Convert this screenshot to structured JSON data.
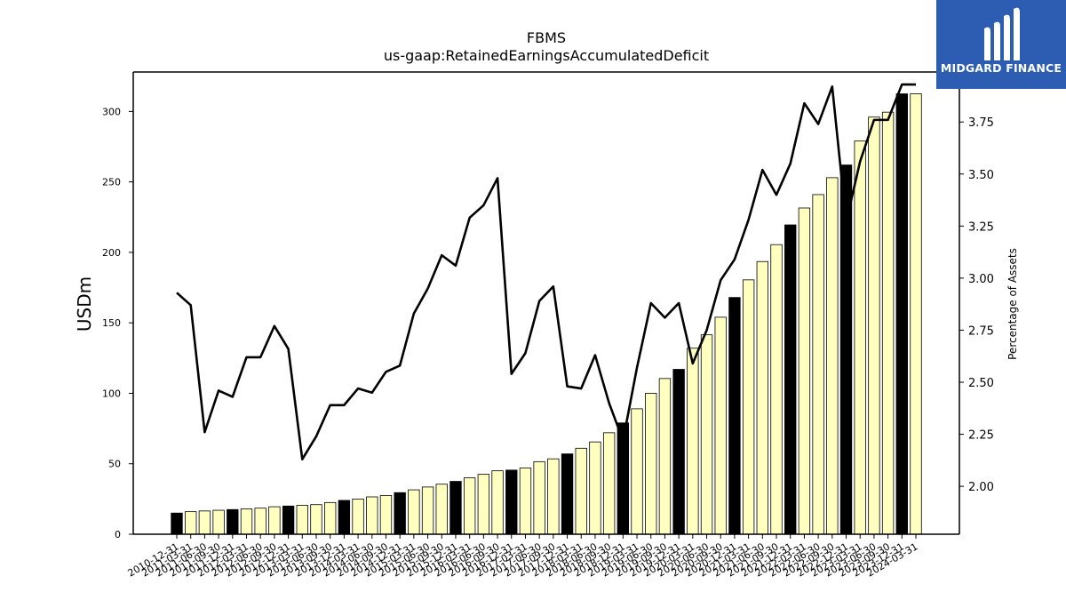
{
  "brand": {
    "name": "MIDGARD FINANCE",
    "color": "#2d5db3"
  },
  "chart_data": {
    "type": "bar",
    "title": "FBMS",
    "subtitle": "us-gaap:RetainedEarningsAccumulatedDeficit",
    "ylabel": "USDm",
    "y2label": "Percentage of Assets",
    "ylim": [
      0,
      328
    ],
    "y2lim": [
      1.77,
      3.99
    ],
    "yticks": [
      0,
      50,
      100,
      150,
      200,
      250,
      300
    ],
    "y2ticks": [
      "2.00",
      "2.25",
      "2.50",
      "2.75",
      "3.00",
      "3.25",
      "3.50",
      "3.75"
    ],
    "categories": [
      "2010-12-31",
      "2011-03-31",
      "2011-06-30",
      "2011-09-30",
      "2011-12-31",
      "2012-03-31",
      "2012-06-30",
      "2012-09-30",
      "2012-12-31",
      "2013-03-31",
      "2013-06-30",
      "2013-09-30",
      "2013-12-31",
      "2014-03-31",
      "2014-06-30",
      "2014-09-30",
      "2014-12-31",
      "2015-03-31",
      "2015-06-30",
      "2015-09-30",
      "2015-12-31",
      "2016-03-31",
      "2016-06-30",
      "2016-09-30",
      "2016-12-31",
      "2017-03-31",
      "2017-06-30",
      "2017-09-30",
      "2017-12-31",
      "2018-03-31",
      "2018-06-30",
      "2018-09-30",
      "2018-12-31",
      "2019-03-31",
      "2019-06-30",
      "2019-09-30",
      "2019-12-31",
      "2020-03-31",
      "2020-06-30",
      "2020-09-30",
      "2020-12-31",
      "2021-03-31",
      "2021-06-30",
      "2021-09-30",
      "2021-12-31",
      "2022-03-31",
      "2022-06-30",
      "2022-09-30",
      "2022-12-31",
      "2023-03-31",
      "2023-06-30",
      "2023-09-30",
      "2023-12-31",
      "2024-03-31"
    ],
    "series": [
      {
        "name": "",
        "kind": "bar",
        "values": [
          15,
          16,
          16.5,
          17,
          17.5,
          18,
          18.5,
          19.5,
          20,
          20.5,
          21,
          22.5,
          24,
          25,
          26.5,
          27.5,
          29.5,
          31.5,
          33.5,
          35.5,
          37.5,
          40,
          42.5,
          45,
          45.5,
          47,
          51.5,
          53.5,
          57,
          61,
          65.5,
          72,
          79,
          89,
          100,
          110.5,
          117,
          132,
          141.5,
          154,
          168,
          180.5,
          193.5,
          205.5,
          219.5,
          231.5,
          241,
          253,
          262,
          279,
          296,
          299.5,
          312.5,
          312.5
        ],
        "year_end_color": "#000000",
        "other_color": "#ffffbf"
      },
      {
        "name": "",
        "kind": "line",
        "axis": "right",
        "color": "#000000",
        "values": [
          2.93,
          2.87,
          2.26,
          2.46,
          2.43,
          2.62,
          2.62,
          2.77,
          2.66,
          2.13,
          2.24,
          2.39,
          2.39,
          2.47,
          2.45,
          2.55,
          2.58,
          2.83,
          2.95,
          3.11,
          3.06,
          3.29,
          3.35,
          3.48,
          2.54,
          2.64,
          2.89,
          2.96,
          2.48,
          2.47,
          2.63,
          2.4,
          2.22,
          2.57,
          2.88,
          2.81,
          2.88,
          2.59,
          2.75,
          2.99,
          3.09,
          3.28,
          3.52,
          3.4,
          3.55,
          3.84,
          3.74,
          3.92,
          3.27,
          3.56,
          3.76,
          3.76,
          3.93,
          3.93
        ]
      }
    ],
    "grid": false,
    "legend": "none"
  }
}
